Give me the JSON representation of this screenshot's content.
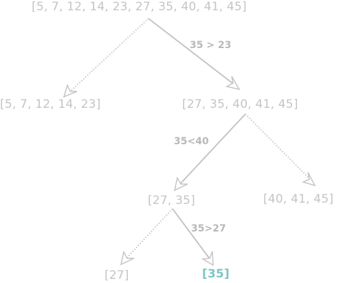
{
  "nodes": {
    "root": "[5, 7, 12, 14, 23, 27, 35, 40, 41, 45]",
    "left1": "[5, 7, 12, 14, 23]",
    "right1": "[27, 35, 40, 41, 45]",
    "left2": "[27, 35]",
    "right2": "[40, 41, 45]",
    "left3": "[27]",
    "right3": "[35]"
  },
  "edge_labels": {
    "root_right": "35 > 23",
    "right1_left": "35<40",
    "left2_right": "35>27"
  },
  "colors": {
    "node_text": "#c4c4c4",
    "found_node": "#7cc6c3",
    "edge": "#c4c4c4"
  }
}
